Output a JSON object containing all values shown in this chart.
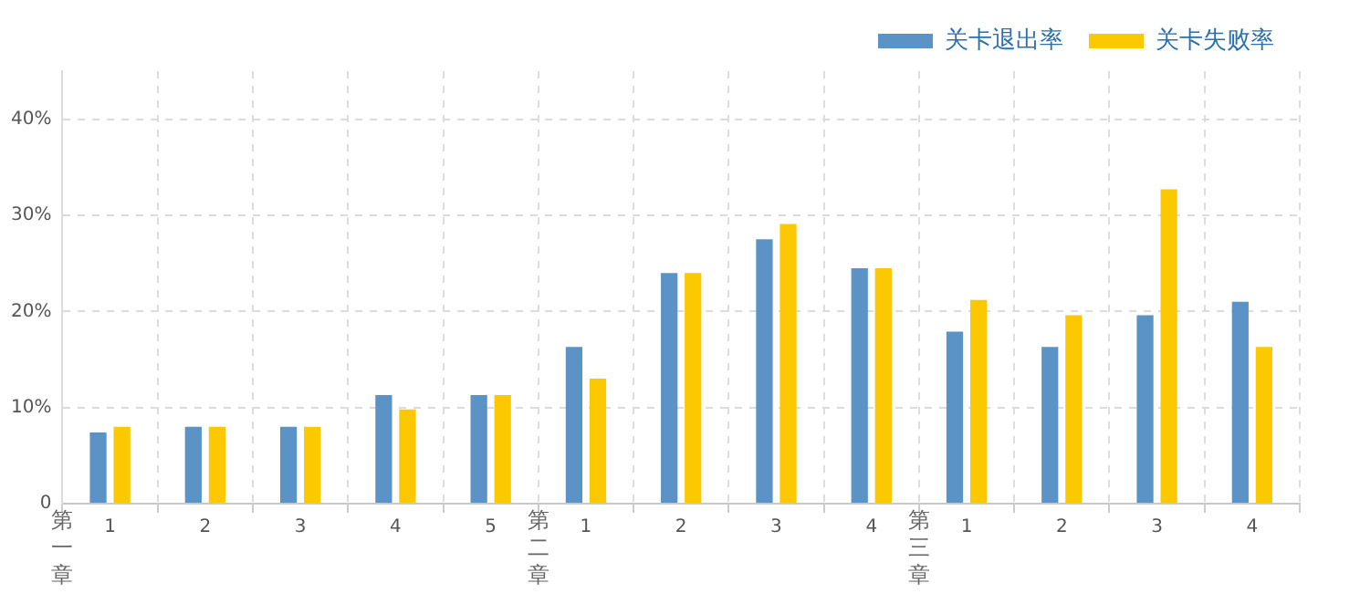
{
  "chart_data": {
    "type": "bar",
    "categories": [
      "1",
      "2",
      "3",
      "4",
      "5",
      "1",
      "2",
      "3",
      "4",
      "1",
      "2",
      "3",
      "4"
    ],
    "series": [
      {
        "name": "关卡退出率",
        "color": "#5b93c6",
        "values": [
          7.4,
          8.0,
          8.0,
          11.3,
          11.3,
          16.3,
          24.0,
          27.5,
          24.5,
          17.9,
          16.3,
          19.6,
          21.0
        ]
      },
      {
        "name": "关卡失败率",
        "color": "#fcc800",
        "values": [
          8.0,
          8.0,
          8.0,
          9.8,
          11.3,
          13.0,
          24.0,
          29.1,
          24.5,
          21.2,
          19.6,
          32.7,
          16.3
        ]
      }
    ],
    "annotations": [
      "第一章",
      "第二章",
      "第三章"
    ],
    "ylim": [
      0,
      45
    ],
    "yticks": [
      0,
      {
        "value": 10,
        "label": "10%"
      },
      {
        "value": 20,
        "label": "20%"
      },
      {
        "value": 30,
        "label": "30%"
      },
      {
        "value": 40,
        "label": "40%"
      }
    ],
    "grid": true,
    "legend": "top right"
  }
}
